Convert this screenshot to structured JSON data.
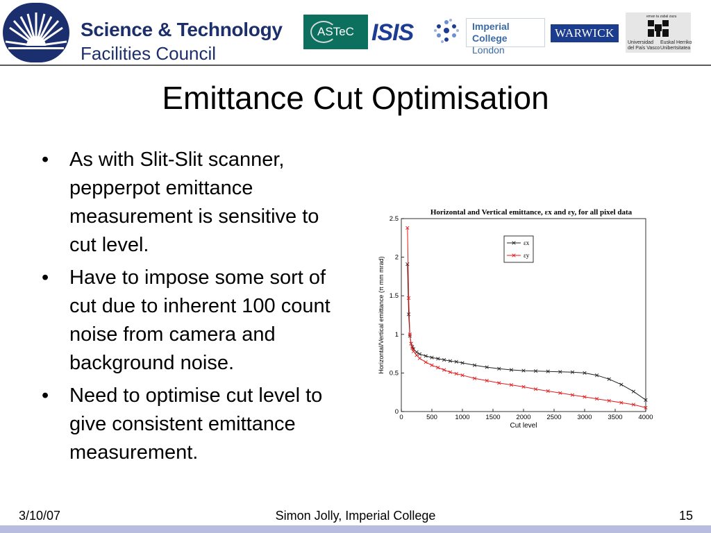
{
  "header": {
    "stfc_line1": "Science & Technology",
    "stfc_line2": "Facilities Council",
    "astec_label": "ASTeC",
    "isis_label": "ISIS",
    "imperial_line1": "Imperial College",
    "imperial_line2": "London",
    "warwick_label": "WARWICK",
    "upv_left_line1": "Universidad",
    "upv_left_line2": "del País Vasco",
    "upv_right_line1": "Euskal Herriko",
    "upv_right_line2": "Unibertsitatea",
    "upv_top": "eman ta zabal zazu"
  },
  "slide": {
    "title": "Emittance Cut Optimisation",
    "bullets": [
      "As with Slit-Slit scanner, pepperpot emittance measurement is sensitive to cut level.",
      "Have to impose some sort of cut due to inherent 100 count noise from camera and background noise.",
      "Need to optimise cut level to give consistent emittance measurement."
    ]
  },
  "footer": {
    "date": "3/10/07",
    "author": "Simon Jolly, Imperial College",
    "page": "15"
  },
  "colors": {
    "series_x": "#222222",
    "series_y": "#e41a1c",
    "footer_bar": "#b8bde0",
    "stfc_blue": "#1c2f6a"
  },
  "chart_data": {
    "type": "line",
    "title": "Horizontal and Vertical emittance, εx and εy, for all pixel data",
    "xlabel": "Cut level",
    "ylabel": "Horizontal/Vertical emittance (π mm mrad)",
    "xlim": [
      0,
      4000
    ],
    "ylim": [
      0,
      2.5
    ],
    "x_ticks": [
      0,
      500,
      1000,
      1500,
      2000,
      2500,
      3000,
      3500,
      4000
    ],
    "y_ticks": [
      0,
      0.5,
      1,
      1.5,
      2,
      2.5
    ],
    "legend_position": "top-left",
    "grid": false,
    "series": [
      {
        "name": "εx",
        "marker": "x",
        "points": [
          [
            100,
            1.91
          ],
          [
            120,
            1.26
          ],
          [
            140,
            0.98
          ],
          [
            160,
            0.88
          ],
          [
            180,
            0.84
          ],
          [
            200,
            0.81
          ],
          [
            250,
            0.77
          ],
          [
            300,
            0.745
          ],
          [
            400,
            0.72
          ],
          [
            500,
            0.7
          ],
          [
            600,
            0.685
          ],
          [
            700,
            0.67
          ],
          [
            800,
            0.655
          ],
          [
            900,
            0.645
          ],
          [
            1000,
            0.63
          ],
          [
            1200,
            0.6
          ],
          [
            1400,
            0.575
          ],
          [
            1600,
            0.555
          ],
          [
            1800,
            0.54
          ],
          [
            2000,
            0.53
          ],
          [
            2200,
            0.525
          ],
          [
            2400,
            0.52
          ],
          [
            2600,
            0.515
          ],
          [
            2800,
            0.51
          ],
          [
            3000,
            0.5
          ],
          [
            3200,
            0.47
          ],
          [
            3400,
            0.42
          ],
          [
            3600,
            0.35
          ],
          [
            3800,
            0.26
          ],
          [
            4000,
            0.15
          ]
        ]
      },
      {
        "name": "εy",
        "marker": "x",
        "points": [
          [
            100,
            2.38
          ],
          [
            120,
            1.47
          ],
          [
            140,
            1.0
          ],
          [
            160,
            0.88
          ],
          [
            180,
            0.82
          ],
          [
            200,
            0.78
          ],
          [
            250,
            0.73
          ],
          [
            300,
            0.69
          ],
          [
            400,
            0.64
          ],
          [
            500,
            0.6
          ],
          [
            600,
            0.57
          ],
          [
            700,
            0.54
          ],
          [
            800,
            0.51
          ],
          [
            900,
            0.49
          ],
          [
            1000,
            0.47
          ],
          [
            1200,
            0.43
          ],
          [
            1400,
            0.4
          ],
          [
            1600,
            0.37
          ],
          [
            1800,
            0.345
          ],
          [
            2000,
            0.32
          ],
          [
            2200,
            0.29
          ],
          [
            2400,
            0.265
          ],
          [
            2600,
            0.24
          ],
          [
            2800,
            0.215
          ],
          [
            3000,
            0.19
          ],
          [
            3200,
            0.165
          ],
          [
            3400,
            0.14
          ],
          [
            3600,
            0.115
          ],
          [
            3800,
            0.09
          ],
          [
            4000,
            0.05
          ]
        ]
      }
    ]
  }
}
